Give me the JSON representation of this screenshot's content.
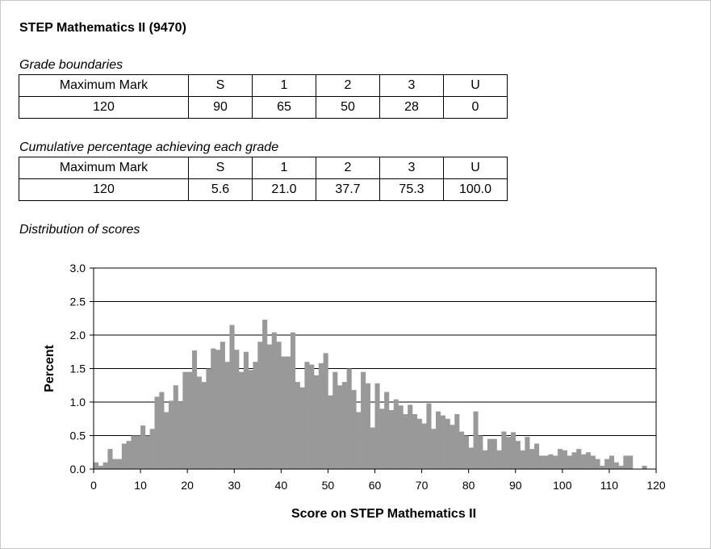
{
  "title": "STEP Mathematics II (9470)",
  "grade_boundaries": {
    "label": "Grade boundaries",
    "headers": [
      "Maximum Mark",
      "S",
      "1",
      "2",
      "3",
      "U"
    ],
    "values": [
      "120",
      "90",
      "65",
      "50",
      "28",
      "0"
    ]
  },
  "cumulative": {
    "label": "Cumulative percentage achieving each grade",
    "headers": [
      "Maximum Mark",
      "S",
      "1",
      "2",
      "3",
      "U"
    ],
    "values": [
      "120",
      "5.6",
      "21.0",
      "37.7",
      "75.3",
      "100.0"
    ]
  },
  "distribution_label": "Distribution of scores",
  "chart_data": {
    "type": "bar",
    "xlabel": "Score on STEP Mathematics II",
    "ylabel": "Percent",
    "xlim": [
      0,
      120
    ],
    "ylim": [
      0,
      3.0
    ],
    "xticks": [
      0,
      10,
      20,
      30,
      40,
      50,
      60,
      70,
      80,
      90,
      100,
      110,
      120
    ],
    "yticks": [
      "0.0",
      "0.5",
      "1.0",
      "1.5",
      "2.0",
      "2.5",
      "3.0"
    ],
    "grid": "horizontal",
    "bar_color": "#999999",
    "x": [
      0,
      1,
      2,
      3,
      4,
      5,
      6,
      7,
      8,
      9,
      10,
      11,
      12,
      13,
      14,
      15,
      16,
      17,
      18,
      19,
      20,
      21,
      22,
      23,
      24,
      25,
      26,
      27,
      28,
      29,
      30,
      31,
      32,
      33,
      34,
      35,
      36,
      37,
      38,
      39,
      40,
      41,
      42,
      43,
      44,
      45,
      46,
      47,
      48,
      49,
      50,
      51,
      52,
      53,
      54,
      55,
      56,
      57,
      58,
      59,
      60,
      61,
      62,
      63,
      64,
      65,
      66,
      67,
      68,
      69,
      70,
      71,
      72,
      73,
      74,
      75,
      76,
      77,
      78,
      79,
      80,
      81,
      82,
      83,
      84,
      85,
      86,
      87,
      88,
      89,
      90,
      91,
      92,
      93,
      94,
      95,
      96,
      97,
      98,
      99,
      100,
      101,
      102,
      103,
      104,
      105,
      106,
      107,
      108,
      109,
      110,
      111,
      112,
      113,
      114,
      115,
      116,
      117,
      118,
      119,
      120
    ],
    "values": [
      0.1,
      0.05,
      0.1,
      0.3,
      0.15,
      0.15,
      0.38,
      0.42,
      0.5,
      0.5,
      0.65,
      0.5,
      0.6,
      1.08,
      1.15,
      0.85,
      1.02,
      1.25,
      1.0,
      1.45,
      1.45,
      1.77,
      1.38,
      1.3,
      1.5,
      1.8,
      1.78,
      1.9,
      1.6,
      2.15,
      1.78,
      1.45,
      1.75,
      1.48,
      1.6,
      1.9,
      2.23,
      1.86,
      2.04,
      1.9,
      1.68,
      1.68,
      2.04,
      1.3,
      1.22,
      1.6,
      1.56,
      1.4,
      1.58,
      1.73,
      1.1,
      1.45,
      1.25,
      1.3,
      1.5,
      1.18,
      0.85,
      1.45,
      1.28,
      0.62,
      1.28,
      0.9,
      1.15,
      0.88,
      1.04,
      0.95,
      0.82,
      0.96,
      0.82,
      0.75,
      0.68,
      0.98,
      0.6,
      0.86,
      0.8,
      0.75,
      0.66,
      0.82,
      0.56,
      0.5,
      0.32,
      0.86,
      0.5,
      0.28,
      0.45,
      0.45,
      0.28,
      0.56,
      0.48,
      0.55,
      0.42,
      0.28,
      0.48,
      0.3,
      0.38,
      0.2,
      0.2,
      0.22,
      0.2,
      0.3,
      0.28,
      0.2,
      0.25,
      0.3,
      0.22,
      0.25,
      0.2,
      0.15,
      0.05,
      0.15,
      0.2,
      0.1,
      0.05,
      0.2,
      0.2,
      0.0,
      0.0,
      0.05,
      0.0,
      0.0,
      0.0
    ]
  }
}
